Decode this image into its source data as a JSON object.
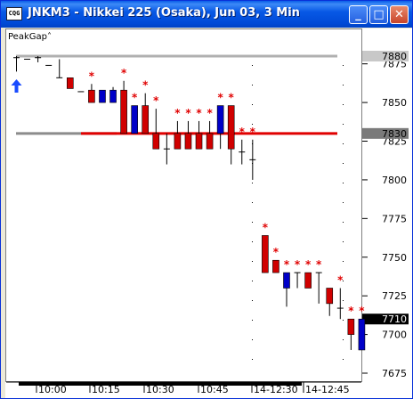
{
  "window": {
    "title": "JNKM3 - Nikkei 225 (Osaka), Jun 03, 3 Min",
    "app_icon_text": "CQG",
    "minimize_label": "_",
    "maximize_label": "□",
    "close_label": "✕"
  },
  "chart_data": {
    "type": "candlestick",
    "study_label": "PeakGap˄",
    "y_ticks": [
      7880,
      7875,
      7850,
      7825,
      7800,
      7775,
      7750,
      7725,
      7700,
      7675
    ],
    "ylim": [
      7668,
      7888
    ],
    "x_ticks": [
      "10:00",
      "10:15",
      "10:30",
      "10:45",
      "14-12:30",
      "14-12:45"
    ],
    "price_boxes": [
      {
        "value": 7880,
        "label": "7880",
        "style": "gray"
      },
      {
        "value": 7830,
        "label": "7830",
        "style": "dark"
      },
      {
        "value": 7710,
        "label": "7710",
        "style": "black"
      }
    ],
    "levels": [
      {
        "name": "upper-gray-line",
        "value": 7880,
        "color": "#b0b0b0"
      },
      {
        "name": "lower-gray-line",
        "value": 7830,
        "color": "#8c8c8c"
      },
      {
        "name": "red-level-line",
        "value": 7830,
        "color": "#e00000"
      }
    ],
    "arrow_up_at_bar": 0,
    "colors": {
      "up": "#0000c8",
      "down": "#d00000",
      "doji": "#000000",
      "star": "#e00000"
    },
    "bars": [
      {
        "o": 7880,
        "h": 7880,
        "l": 7870,
        "c": 7879,
        "k": "doji",
        "star": false
      },
      {
        "o": 7878,
        "h": 7878,
        "l": 7878,
        "c": 7878,
        "k": "doji",
        "star": false
      },
      {
        "o": 7880,
        "h": 7880,
        "l": 7876,
        "c": 7879,
        "k": "doji",
        "star": false
      },
      {
        "o": 7874,
        "h": 7874,
        "l": 7874,
        "c": 7874,
        "k": "doji",
        "star": false
      },
      {
        "o": 7873,
        "h": 7878,
        "l": 7866,
        "c": 7866,
        "k": "doji",
        "star": false
      },
      {
        "o": 7866,
        "h": 7866,
        "l": 7859,
        "c": 7859,
        "k": "down",
        "star": false
      },
      {
        "o": 7857,
        "h": 7857,
        "l": 7857,
        "c": 7857,
        "k": "doji",
        "star": false
      },
      {
        "o": 7858,
        "h": 7862,
        "l": 7850,
        "c": 7850,
        "k": "down",
        "star": true
      },
      {
        "o": 7850,
        "h": 7858,
        "l": 7850,
        "c": 7858,
        "k": "up",
        "star": false
      },
      {
        "o": 7850,
        "h": 7860,
        "l": 7850,
        "c": 7858,
        "k": "up",
        "star": false
      },
      {
        "o": 7858,
        "h": 7864,
        "l": 7830,
        "c": 7830,
        "k": "down",
        "star": true
      },
      {
        "o": 7830,
        "h": 7848,
        "l": 7830,
        "c": 7848,
        "k": "up",
        "star": true
      },
      {
        "o": 7848,
        "h": 7856,
        "l": 7830,
        "c": 7830,
        "k": "down",
        "star": true
      },
      {
        "o": 7830,
        "h": 7846,
        "l": 7820,
        "c": 7820,
        "k": "down",
        "star": true
      },
      {
        "o": 7829,
        "h": 7830,
        "l": 7810,
        "c": 7820,
        "k": "doji",
        "star": false
      },
      {
        "o": 7830,
        "h": 7838,
        "l": 7820,
        "c": 7820,
        "k": "down",
        "star": true
      },
      {
        "o": 7830,
        "h": 7838,
        "l": 7820,
        "c": 7820,
        "k": "down",
        "star": true
      },
      {
        "o": 7830,
        "h": 7838,
        "l": 7820,
        "c": 7820,
        "k": "down",
        "star": true
      },
      {
        "o": 7830,
        "h": 7838,
        "l": 7820,
        "c": 7820,
        "k": "down",
        "star": true
      },
      {
        "o": 7830,
        "h": 7848,
        "l": 7820,
        "c": 7848,
        "k": "up",
        "star": true
      },
      {
        "o": 7848,
        "h": 7848,
        "l": 7810,
        "c": 7820,
        "k": "down",
        "star": true
      },
      {
        "o": 7820,
        "h": 7826,
        "l": 7810,
        "c": 7818,
        "k": "doji",
        "star": true
      },
      {
        "o": 7820,
        "h": 7826,
        "l": 7800,
        "c": 7813,
        "k": "doji",
        "star": true
      },
      {
        "o": 7764,
        "h": 7764,
        "l": 7740,
        "c": 7740,
        "k": "down",
        "star": true
      },
      {
        "o": 7748,
        "h": 7748,
        "l": 7740,
        "c": 7740,
        "k": "down",
        "star": true
      },
      {
        "o": 7730,
        "h": 7740,
        "l": 7718,
        "c": 7740,
        "k": "up",
        "star": true
      },
      {
        "o": 7740,
        "h": 7740,
        "l": 7730,
        "c": 7740,
        "k": "doji",
        "star": true
      },
      {
        "o": 7740,
        "h": 7740,
        "l": 7730,
        "c": 7730,
        "k": "down",
        "star": true
      },
      {
        "o": 7740,
        "h": 7740,
        "l": 7720,
        "c": 7740,
        "k": "doji",
        "star": true
      },
      {
        "o": 7730,
        "h": 7730,
        "l": 7712,
        "c": 7720,
        "k": "down",
        "star": false
      },
      {
        "o": 7720,
        "h": 7730,
        "l": 7710,
        "c": 7717,
        "k": "doji",
        "star": true
      },
      {
        "o": 7710,
        "h": 7710,
        "l": 7690,
        "c": 7700,
        "k": "down",
        "star": true
      },
      {
        "o": 7690,
        "h": 7710,
        "l": 7690,
        "c": 7710,
        "k": "up",
        "star": true
      }
    ]
  }
}
